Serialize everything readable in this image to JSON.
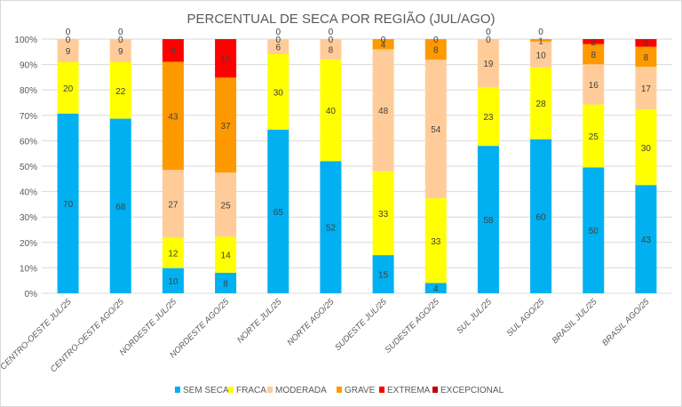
{
  "chart_data": {
    "type": "bar",
    "stacked": true,
    "percent_stacked": true,
    "title": "PERCENTUAL DE SECA POR REGIÃO (JUL/AGO)",
    "xlabel": "",
    "ylabel": "",
    "ylim": [
      0,
      100
    ],
    "yticks": [
      "0%",
      "10%",
      "20%",
      "30%",
      "40%",
      "50%",
      "60%",
      "70%",
      "80%",
      "90%",
      "100%"
    ],
    "grid": true,
    "legend_position": "bottom",
    "categories": [
      "CENTRO-OESTE JUL/25",
      "CENTRO-OESTE AGO/25",
      "NORDESTE JUL/25",
      "NORDESTE AGO/25",
      "NORTE JUL/25",
      "NORTE AGO/25",
      "SUDESTE JUL/25",
      "SUDESTE AGO/25",
      "SUL JUL/25",
      "SUL AGO/25",
      "BRASIL JUL/25",
      "BRASIL AGO/25"
    ],
    "series": [
      {
        "name": "SEM SECA",
        "color": "#00B0F0",
        "values": [
          70,
          68,
          10,
          8,
          65,
          52,
          15,
          4,
          58,
          60,
          50,
          43
        ]
      },
      {
        "name": "FRACA",
        "color": "#FFFF00",
        "values": [
          20,
          22,
          12,
          14,
          30,
          40,
          33,
          33,
          23,
          28,
          25,
          30
        ]
      },
      {
        "name": "MODERADA",
        "color": "#FFCC99",
        "values": [
          9,
          9,
          27,
          25,
          6,
          8,
          48,
          54,
          19,
          10,
          16,
          17
        ]
      },
      {
        "name": "GRAVE",
        "color": "#FF9900",
        "values": [
          0,
          0,
          43,
          37,
          0,
          0,
          4,
          8,
          0,
          1,
          8,
          8
        ]
      },
      {
        "name": "EXTREMA",
        "color": "#FF0000",
        "values": [
          0,
          0,
          9,
          15,
          0,
          0,
          0,
          0,
          0,
          0,
          2,
          3
        ]
      },
      {
        "name": "EXCEPCIONAL",
        "color": "#C00000",
        "values": [
          0,
          0,
          0,
          0,
          0,
          0,
          0,
          0,
          0,
          0,
          0,
          0
        ]
      }
    ]
  }
}
